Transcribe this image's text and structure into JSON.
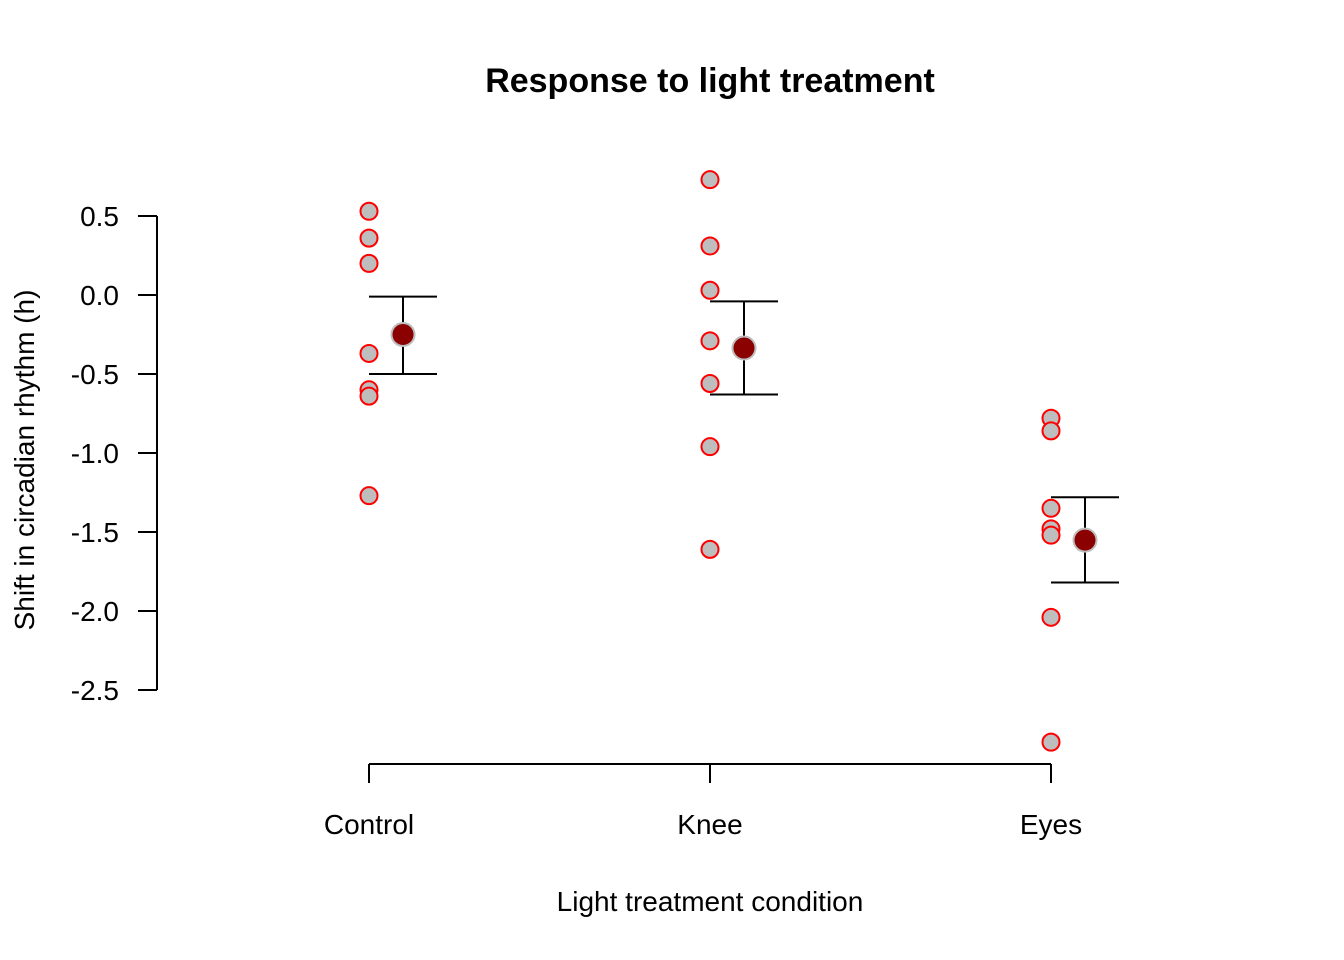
{
  "chart_data": {
    "type": "scatter",
    "title": "Response to light treatment",
    "xlabel": "Light treatment condition",
    "ylabel": "Shift in circadian rhythm (h)",
    "ylim": [
      -2.85,
      0.75
    ],
    "y_ticks": [
      0.5,
      0.0,
      -0.5,
      -1.0,
      -1.5,
      -2.0,
      -2.5
    ],
    "y_tick_labels": [
      "0.5",
      "0.0",
      "-0.5",
      "-1.0",
      "-1.5",
      "-2.0",
      "-2.5"
    ],
    "categories": [
      "Control",
      "Knee",
      "Eyes"
    ],
    "grid": false,
    "colors": {
      "point_fill": "#bebebe",
      "point_stroke": "#ff0000",
      "mean_fill": "#8b0000",
      "mean_stroke": "#bebebe",
      "errorbar": "#000000"
    },
    "series": [
      {
        "category": "Control",
        "values": [
          0.53,
          0.36,
          0.2,
          -0.37,
          -0.6,
          -0.64,
          -1.27
        ],
        "mean": -0.25,
        "error_low": -0.5,
        "error_high": -0.01
      },
      {
        "category": "Knee",
        "values": [
          0.73,
          0.31,
          0.03,
          -0.29,
          -0.56,
          -0.96,
          -1.61
        ],
        "mean": -0.3357,
        "error_low": -0.63,
        "error_high": -0.04
      },
      {
        "category": "Eyes",
        "values": [
          -0.78,
          -0.86,
          -1.35,
          -1.48,
          -1.52,
          -2.04,
          -2.83
        ],
        "mean": -1.5514,
        "error_low": -1.82,
        "error_high": -1.28
      }
    ]
  }
}
